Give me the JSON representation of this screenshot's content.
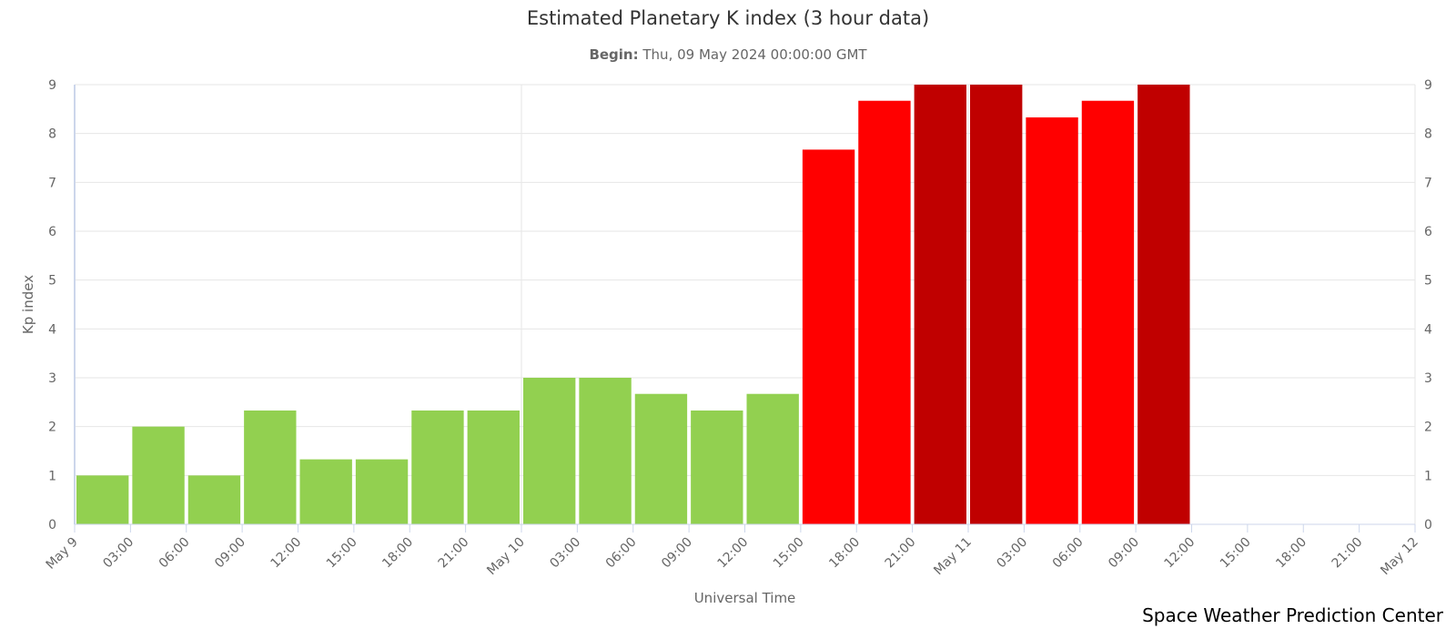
{
  "chart_data": {
    "type": "bar",
    "title": "Estimated Planetary K index (3 hour data)",
    "subtitle_label": "Begin:",
    "subtitle_value": "Thu, 09 May 2024 00:00:00 GMT",
    "xlabel": "Universal Time",
    "ylabel": "Kp index",
    "ylim": [
      0,
      9
    ],
    "y_ticks": [
      0,
      1,
      2,
      3,
      4,
      5,
      6,
      7,
      8,
      9
    ],
    "right_axis_ticks": [
      0,
      1,
      2,
      3,
      4,
      5,
      6,
      7,
      8,
      9
    ],
    "grid": true,
    "x_tick_labels": [
      "May 9",
      "03:00",
      "06:00",
      "09:00",
      "12:00",
      "15:00",
      "18:00",
      "21:00",
      "May 10",
      "03:00",
      "06:00",
      "09:00",
      "12:00",
      "15:00",
      "18:00",
      "21:00",
      "May 11",
      "03:00",
      "06:00",
      "09:00",
      "12:00",
      "15:00",
      "18:00",
      "21:00",
      "May 12"
    ],
    "values": [
      1.0,
      2.0,
      1.0,
      2.33,
      1.33,
      1.33,
      2.33,
      2.33,
      3.0,
      3.0,
      2.67,
      2.33,
      2.67,
      7.67,
      8.67,
      9.0,
      9.0,
      8.33,
      8.67,
      9.0
    ],
    "colors": {
      "green": "#92d050",
      "red": "#ff0000",
      "dark_red": "#c00000",
      "grid": "#e6e6e6",
      "axis": "#ccd6eb"
    },
    "bar_color_keys": [
      "green",
      "green",
      "green",
      "green",
      "green",
      "green",
      "green",
      "green",
      "green",
      "green",
      "green",
      "green",
      "green",
      "red",
      "red",
      "dark_red",
      "dark_red",
      "red",
      "red",
      "dark_red"
    ]
  },
  "credit": "Space Weather Prediction Center"
}
